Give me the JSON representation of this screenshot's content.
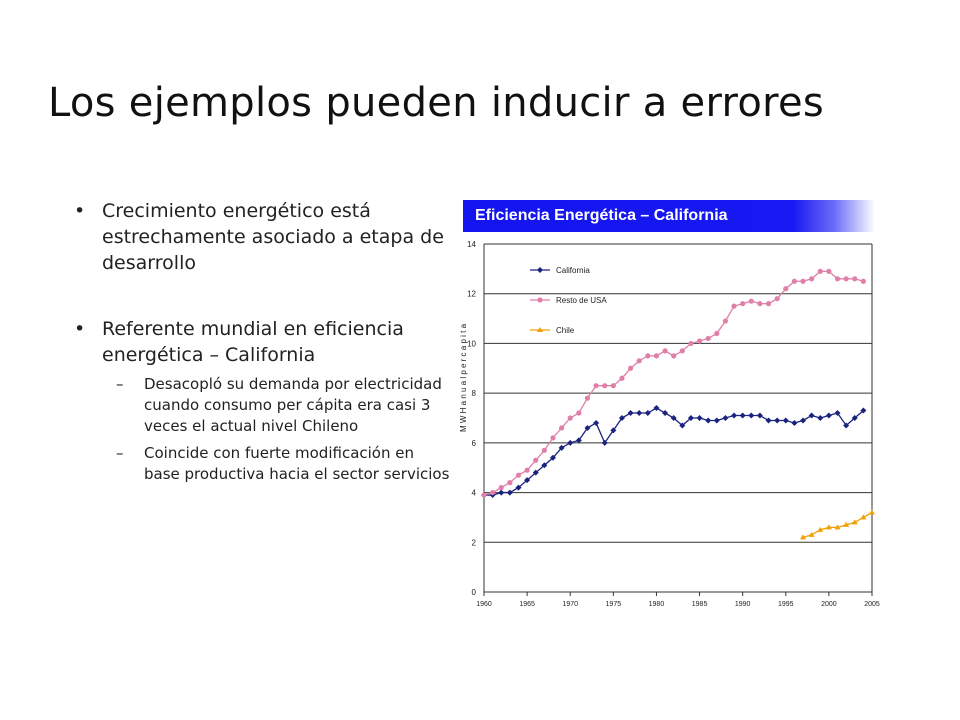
{
  "slide": {
    "title": "Los ejemplos pueden inducir a errores",
    "bullets": [
      {
        "text": "Crecimiento energético está estrechamente asociado a etapa de desarrollo",
        "subs": []
      },
      {
        "text": "Referente mundial en eficiencia energética – California",
        "subs": [
          "Desacopló su demanda por electricidad cuando consumo per cápita era casi 3 veces el actual nivel Chileno",
          "Coincide con fuerte modificación en base productiva hacia el sector servicios"
        ]
      }
    ],
    "bullet_marker": "•",
    "sub_marker": "–",
    "banner": "Eficiencia Energética – California"
  },
  "colors": {
    "banner": "#1414f0",
    "california": "#1a237e",
    "resto": "#e07fa8",
    "chile": "#f0a000"
  },
  "chart_data": {
    "type": "line",
    "title": "Eficiencia Energética – California",
    "ylabel": "M W H  a n u a l  p e r  c a p i t a",
    "xlabel": "",
    "xlim": [
      1960,
      2005
    ],
    "ylim": [
      0,
      14
    ],
    "xticks": [
      1960,
      1965,
      1970,
      1975,
      1980,
      1985,
      1990,
      1995,
      2000,
      2005
    ],
    "yticks": [
      0,
      2,
      4,
      6,
      8,
      10,
      12,
      14
    ],
    "grid": "horizontal",
    "legend": "top-left",
    "series": [
      {
        "name": "California",
        "color": "#1a237e",
        "marker": "diamond",
        "x": [
          1960,
          1961,
          1962,
          1963,
          1964,
          1965,
          1966,
          1967,
          1968,
          1969,
          1970,
          1971,
          1972,
          1973,
          1974,
          1975,
          1976,
          1977,
          1978,
          1979,
          1980,
          1981,
          1982,
          1983,
          1984,
          1985,
          1986,
          1987,
          1988,
          1989,
          1990,
          1991,
          1992,
          1993,
          1994,
          1995,
          1996,
          1997,
          1998,
          1999,
          2000,
          2001,
          2002,
          2003,
          2004
        ],
        "y": [
          3.9,
          3.9,
          4.0,
          4.0,
          4.2,
          4.5,
          4.8,
          5.1,
          5.4,
          5.8,
          6.0,
          6.1,
          6.6,
          6.8,
          6.0,
          6.5,
          7.0,
          7.2,
          7.2,
          7.2,
          7.4,
          7.2,
          7.0,
          6.7,
          7.0,
          7.0,
          6.9,
          6.9,
          7.0,
          7.1,
          7.1,
          7.1,
          7.1,
          6.9,
          6.9,
          6.9,
          6.8,
          6.9,
          7.1,
          7.0,
          7.1,
          7.2,
          6.7,
          7.0,
          7.3
        ]
      },
      {
        "name": "Resto de USA",
        "color": "#e07fa8",
        "marker": "circle",
        "x": [
          1960,
          1961,
          1962,
          1963,
          1964,
          1965,
          1966,
          1967,
          1968,
          1969,
          1970,
          1971,
          1972,
          1973,
          1974,
          1975,
          1976,
          1977,
          1978,
          1979,
          1980,
          1981,
          1982,
          1983,
          1984,
          1985,
          1986,
          1987,
          1988,
          1989,
          1990,
          1991,
          1992,
          1993,
          1994,
          1995,
          1996,
          1997,
          1998,
          1999,
          2000,
          2001,
          2002,
          2003,
          2004
        ],
        "y": [
          3.9,
          4.0,
          4.2,
          4.4,
          4.7,
          4.9,
          5.3,
          5.7,
          6.2,
          6.6,
          7.0,
          7.2,
          7.8,
          8.3,
          8.3,
          8.3,
          8.6,
          9.0,
          9.3,
          9.5,
          9.5,
          9.7,
          9.5,
          9.7,
          10.0,
          10.1,
          10.2,
          10.4,
          10.9,
          11.5,
          11.6,
          11.7,
          11.6,
          11.6,
          11.8,
          12.2,
          12.5,
          12.5,
          12.6,
          12.9,
          12.9,
          12.6,
          12.6,
          12.6,
          12.5
        ]
      },
      {
        "name": "Chile",
        "color": "#f0a000",
        "marker": "triangle",
        "x": [
          1997,
          1998,
          1999,
          2000,
          2001,
          2002,
          2003,
          2004,
          2005
        ],
        "y": [
          2.2,
          2.3,
          2.5,
          2.6,
          2.6,
          2.7,
          2.8,
          3.0,
          3.2
        ]
      }
    ]
  }
}
